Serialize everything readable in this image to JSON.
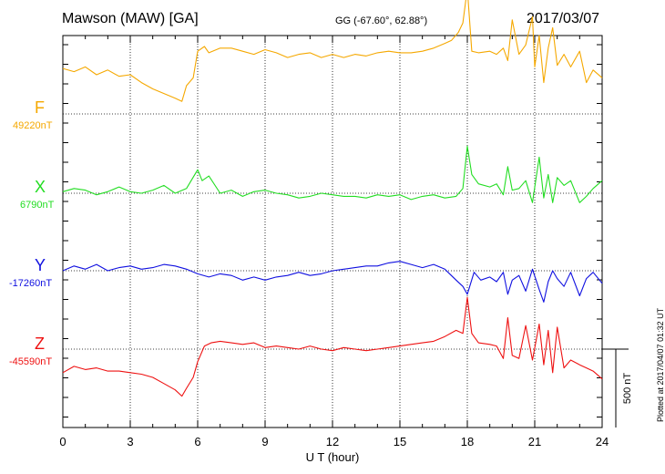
{
  "header": {
    "station": "Mawson (MAW)  [GA]",
    "coords": "GG (-67.60°,  62.88°)",
    "date": "2017/03/07"
  },
  "footer": {
    "plotted": "Plotted at 2017/04/07 01:32 UT",
    "scale_label": "500 nT"
  },
  "colors": {
    "F": "#f5a800",
    "X": "#22dd22",
    "Y": "#1010e0",
    "Z": "#ee1111"
  },
  "chart_data": {
    "type": "line",
    "xlabel": "U T (hour)",
    "xlim": [
      0,
      24
    ],
    "xticks": [
      "0",
      "3",
      "6",
      "9",
      "12",
      "15",
      "18",
      "21",
      "24"
    ],
    "scale_bar_nT": 500,
    "series": [
      {
        "name": "F",
        "baseline_label": "49220nT",
        "baseline": 49220,
        "x": [
          0,
          0.5,
          1,
          1.5,
          2,
          2.5,
          3,
          3.5,
          4,
          4.5,
          5,
          5.3,
          5.5,
          5.8,
          6,
          6.3,
          6.5,
          7,
          7.5,
          8,
          8.5,
          9,
          9.5,
          10,
          10.5,
          11,
          11.5,
          12,
          12.5,
          13,
          13.5,
          14,
          14.5,
          15,
          15.5,
          16,
          16.5,
          17,
          17.3,
          17.6,
          17.8,
          18,
          18.2,
          18.5,
          19,
          19.3,
          19.6,
          19.8,
          20,
          20.3,
          20.6,
          20.9,
          21,
          21.2,
          21.4,
          21.6,
          21.8,
          22,
          22.3,
          22.6,
          23,
          23.3,
          23.6,
          24
        ],
        "values": [
          290,
          270,
          300,
          250,
          280,
          240,
          250,
          200,
          160,
          130,
          100,
          80,
          180,
          230,
          400,
          430,
          390,
          420,
          420,
          400,
          380,
          410,
          390,
          360,
          380,
          390,
          360,
          380,
          360,
          380,
          370,
          390,
          400,
          390,
          390,
          400,
          420,
          450,
          470,
          520,
          580,
          800,
          400,
          390,
          400,
          380,
          420,
          340,
          600,
          380,
          440,
          620,
          300,
          500,
          200,
          420,
          550,
          310,
          380,
          300,
          400,
          200,
          280,
          230
        ]
      },
      {
        "name": "X",
        "baseline_label": "6790nT",
        "baseline": 6790,
        "x": [
          0,
          0.5,
          1,
          1.5,
          2,
          2.5,
          3,
          3.5,
          4,
          4.5,
          5,
          5.5,
          6,
          6.2,
          6.5,
          7,
          7.5,
          8,
          8.5,
          9,
          9.5,
          10,
          10.5,
          11,
          11.5,
          12,
          12.5,
          13,
          13.5,
          14,
          14.5,
          15,
          15.5,
          16,
          16.5,
          17,
          17.5,
          17.8,
          18,
          18.2,
          18.5,
          19,
          19.3,
          19.6,
          19.8,
          20,
          20.3,
          20.6,
          20.9,
          21.2,
          21.4,
          21.6,
          21.8,
          22,
          22.3,
          22.6,
          23,
          23.3,
          23.6,
          24
        ],
        "values": [
          10,
          30,
          20,
          -10,
          10,
          40,
          10,
          0,
          20,
          50,
          0,
          30,
          150,
          80,
          110,
          0,
          20,
          -20,
          10,
          20,
          0,
          -10,
          -30,
          -20,
          0,
          -10,
          -20,
          -20,
          -30,
          -10,
          -20,
          -10,
          -40,
          -20,
          -10,
          -30,
          -20,
          30,
          300,
          120,
          60,
          40,
          60,
          -10,
          170,
          20,
          30,
          80,
          -60,
          230,
          -30,
          120,
          -60,
          100,
          50,
          80,
          -60,
          -20,
          30,
          80
        ]
      },
      {
        "name": "Y",
        "baseline_label": "-17260nT",
        "baseline": -17260,
        "x": [
          0,
          0.5,
          1,
          1.5,
          2,
          2.5,
          3,
          3.5,
          4,
          4.5,
          5,
          5.5,
          6,
          6.5,
          7,
          7.5,
          8,
          8.5,
          9,
          9.5,
          10,
          10.5,
          11,
          11.5,
          12,
          12.5,
          13,
          13.5,
          14,
          14.5,
          15,
          15.5,
          16,
          16.5,
          17,
          17.5,
          17.8,
          18,
          18.3,
          18.6,
          19,
          19.3,
          19.6,
          19.8,
          20,
          20.3,
          20.6,
          20.9,
          21.2,
          21.4,
          21.6,
          21.8,
          22,
          22.3,
          22.6,
          23,
          23.3,
          23.6,
          24
        ],
        "values": [
          0,
          30,
          10,
          40,
          0,
          20,
          30,
          10,
          20,
          40,
          30,
          10,
          -20,
          -40,
          -20,
          -30,
          -60,
          -40,
          -60,
          -40,
          -30,
          -10,
          -30,
          -20,
          0,
          10,
          20,
          30,
          30,
          50,
          60,
          40,
          20,
          40,
          10,
          -60,
          -100,
          -150,
          -10,
          -60,
          -40,
          -70,
          -10,
          -150,
          -60,
          -30,
          -130,
          10,
          -120,
          -200,
          -70,
          0,
          -50,
          -100,
          -10,
          -160,
          -50,
          -10,
          -80
        ]
      },
      {
        "name": "Z",
        "baseline_label": "-45590nT",
        "baseline": -45590,
        "x": [
          0,
          0.5,
          1,
          1.5,
          2,
          2.5,
          3,
          3.5,
          4,
          4.5,
          5,
          5.3,
          5.5,
          5.8,
          6,
          6.3,
          6.6,
          7,
          7.5,
          8,
          8.5,
          9,
          9.5,
          10,
          10.5,
          11,
          11.5,
          12,
          12.5,
          13,
          13.5,
          14,
          14.5,
          15,
          15.5,
          16,
          16.5,
          17,
          17.5,
          17.8,
          18,
          18.2,
          18.5,
          19,
          19.3,
          19.6,
          19.8,
          20,
          20.3,
          20.6,
          20.9,
          21.2,
          21.4,
          21.6,
          21.8,
          22,
          22.3,
          22.6,
          23,
          23.3,
          23.6,
          24
        ],
        "values": [
          -150,
          -110,
          -130,
          -120,
          -140,
          -140,
          -150,
          -160,
          -180,
          -220,
          -260,
          -300,
          -250,
          -180,
          -80,
          20,
          40,
          50,
          40,
          30,
          40,
          10,
          20,
          10,
          0,
          20,
          0,
          -10,
          10,
          0,
          -10,
          0,
          10,
          20,
          30,
          40,
          50,
          80,
          120,
          100,
          330,
          100,
          40,
          30,
          20,
          -60,
          200,
          -40,
          -60,
          150,
          -70,
          160,
          -100,
          120,
          -150,
          140,
          -120,
          -70,
          -100,
          -120,
          -140,
          -190
        ]
      }
    ]
  }
}
